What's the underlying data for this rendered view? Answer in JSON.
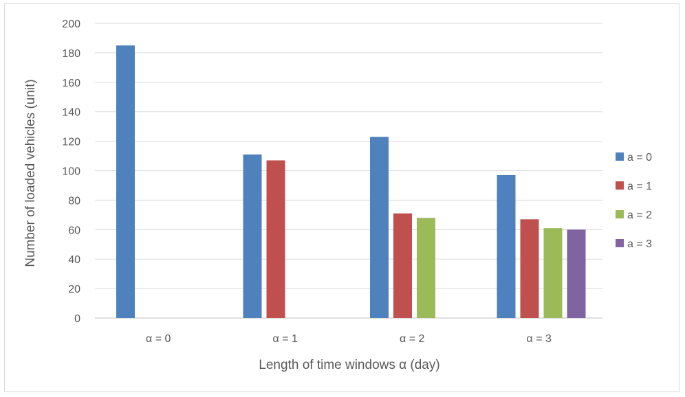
{
  "chart_data": {
    "type": "bar",
    "title": "",
    "xlabel": "Length of time windows α (day)",
    "ylabel": "Number of loaded vehicles (unit)",
    "ylim": [
      0,
      200
    ],
    "ytick_step": 20,
    "yticks": [
      "0",
      "20",
      "40",
      "60",
      "80",
      "100",
      "120",
      "140",
      "160",
      "180",
      "200"
    ],
    "categories": [
      "α = 0",
      "α = 1",
      "α = 2",
      "α = 3"
    ],
    "grid": "horizontal",
    "legend_position": "right",
    "series": [
      {
        "name": "a = 0",
        "color": "#4f81bd",
        "values": [
          185,
          111,
          123,
          97
        ]
      },
      {
        "name": "a = 1",
        "color": "#c0504d",
        "values": [
          null,
          107,
          71,
          67
        ]
      },
      {
        "name": "a = 2",
        "color": "#9bbb59",
        "values": [
          null,
          null,
          68,
          61
        ]
      },
      {
        "name": "a = 3",
        "color": "#8064a2",
        "values": [
          null,
          null,
          null,
          60
        ]
      }
    ]
  }
}
